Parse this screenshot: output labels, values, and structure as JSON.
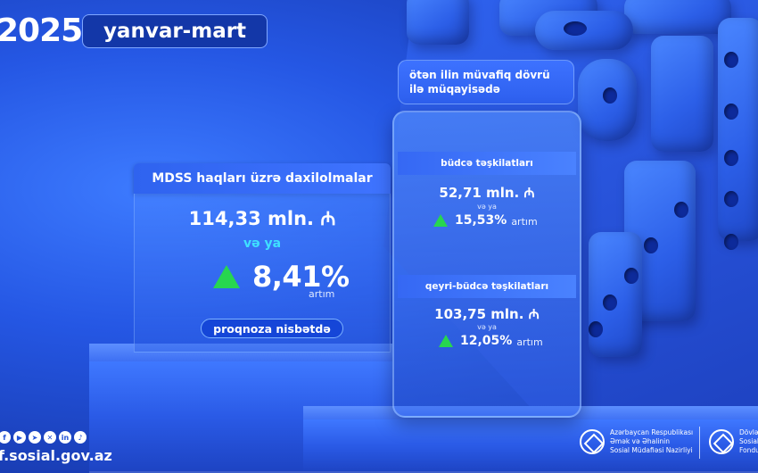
{
  "header": {
    "year": "2025",
    "period": "yanvar-mart"
  },
  "left_card": {
    "title": "MDSS haqları üzrə daxilolmalar",
    "amount": "114,33 mln. ₼",
    "or_text": "və ya",
    "percent": "8,41%",
    "growth_word": "artım",
    "basis_label": "proqnoza nisbətdə"
  },
  "right_card": {
    "comparison_note_line1": "ötən ilin müvafiq dövrü",
    "comparison_note_line2": "ilə müqayisədə",
    "sections": [
      {
        "title": "büdcə təşkilatları",
        "amount": "52,71 mln. ₼",
        "or_text": "və ya",
        "percent": "15,53%",
        "growth_word": "artım"
      },
      {
        "title": "qeyri-büdcə təşkilatları",
        "amount": "103,75 mln. ₼",
        "or_text": "və ya",
        "percent": "12,05%",
        "growth_word": "artım"
      }
    ]
  },
  "footer": {
    "social_icons": [
      "facebook-icon",
      "youtube-icon",
      "telegram-icon",
      "x-icon",
      "linkedin-icon",
      "tiktok-icon"
    ],
    "website": "f.sosial.gov.az",
    "org1_line1": "Azərbaycan Respublikası",
    "org1_line2": "Əmək və Əhalinin",
    "org1_line3": "Sosial Müdafiəsi Nazirliyi",
    "org2_line1": "Dövlə",
    "org2_line2": "Sosial",
    "org2_line3": "Fondu"
  },
  "colors": {
    "background": "#1f4fd6",
    "accent_green": "#27d64f",
    "accent_cyan": "#3fe0ff",
    "period_badge": "#1337a8"
  }
}
